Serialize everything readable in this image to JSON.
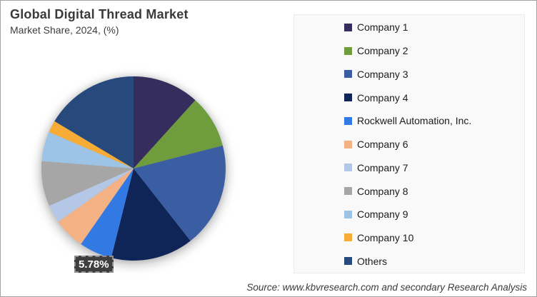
{
  "header": {
    "title": "Global Digital Thread Market",
    "subtitle": "Market Share, 2024, (%)"
  },
  "chart_data": {
    "type": "pie",
    "title": "Global Digital Thread Market",
    "subtitle": "Market Share, 2024, (%)",
    "unit": "percent of market share",
    "legend_position": "right",
    "start_angle_deg": 0,
    "direction": "clockwise",
    "labels": [
      "Company 1",
      "Company 2",
      "Company 3",
      "Company 4",
      "Rockwell Automation, Inc.",
      "Company 6",
      "Company 7",
      "Company 8",
      "Company 9",
      "Company 10",
      "Others"
    ],
    "values": [
      11.7,
      9.3,
      18.4,
      14.5,
      5.78,
      5.5,
      3.2,
      7.9,
      5.2,
      2.1,
      16.42
    ],
    "colors": [
      "#352E5D",
      "#6F9C3D",
      "#3B5EA3",
      "#0F2557",
      "#3379E3",
      "#F4B183",
      "#B4C7E7",
      "#A6A6A6",
      "#9DC3E6",
      "#F7AC38",
      "#27497B"
    ],
    "annotations": [
      {
        "slice": "Rockwell Automation, Inc.",
        "text": "5.78%"
      }
    ]
  },
  "data_label": {
    "text": "5.78%"
  },
  "footer": {
    "source": "Source: www.kbvresearch.com and secondary Research Analysis"
  }
}
